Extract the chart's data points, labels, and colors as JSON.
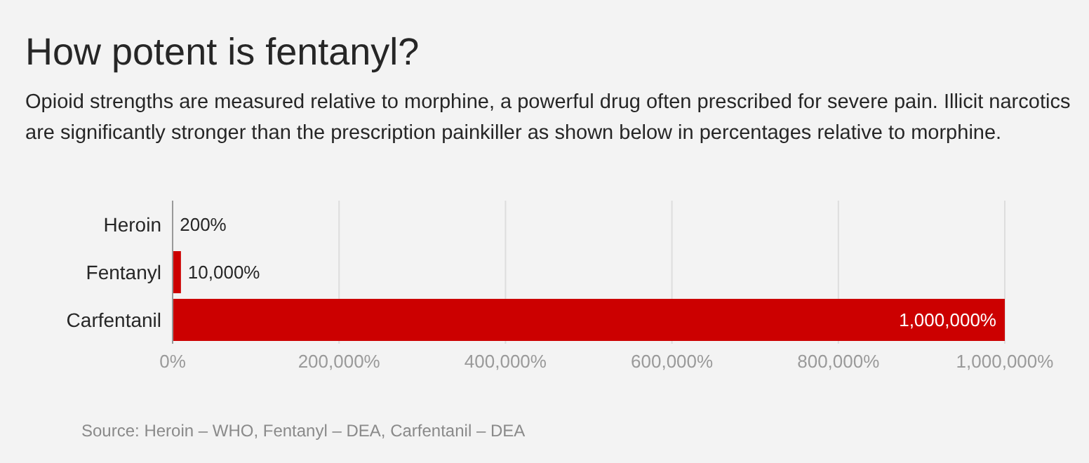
{
  "chart_data": {
    "type": "bar",
    "orientation": "horizontal",
    "title": "How potent is fentanyl?",
    "subtitle": "Opioid strengths are measured relative to morphine, a powerful drug often prescribed for severe pain. Illicit narcotics are significantly stronger than the prescription painkiller as shown below in percentages relative to morphine.",
    "categories": [
      "Heroin",
      "Fentanyl",
      "Carfentanil"
    ],
    "values": [
      200,
      10000,
      1000000
    ],
    "value_labels": [
      "200%",
      "10,000%",
      "1,000,000%"
    ],
    "color": "#cc0000",
    "xlim": [
      0,
      1000000
    ],
    "xticks": [
      {
        "value": 0,
        "label": "0%"
      },
      {
        "value": 200000,
        "label": "200,000%"
      },
      {
        "value": 400000,
        "label": "400,000%"
      },
      {
        "value": 600000,
        "label": "600,000%"
      },
      {
        "value": 800000,
        "label": "800,000%"
      },
      {
        "value": 1000000,
        "label": "1,000,000%"
      }
    ],
    "grid": "x",
    "annotations": [
      "Source: Heroin – WHO, Fentanyl – DEA, Carfentanil – DEA"
    ]
  }
}
